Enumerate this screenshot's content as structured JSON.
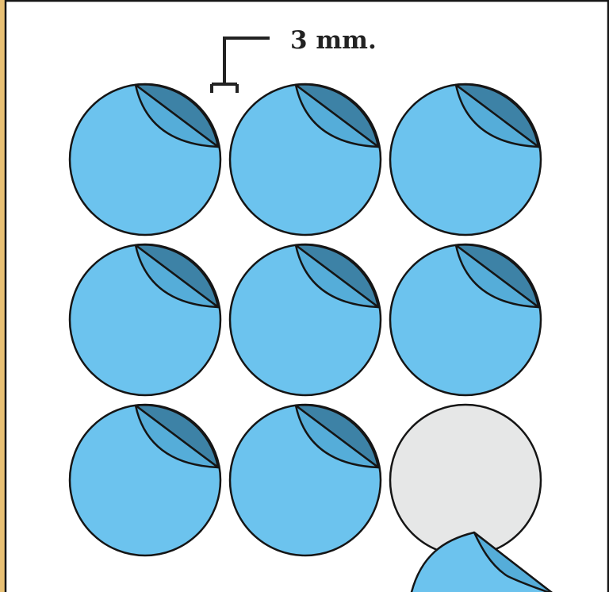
{
  "dimension": {
    "label": "3 mm."
  },
  "stickers": [
    {
      "state": "attached",
      "peel": "corner-lifted"
    },
    {
      "state": "attached",
      "peel": "corner-lifted"
    },
    {
      "state": "attached",
      "peel": "corner-lifted"
    },
    {
      "state": "attached",
      "peel": "corner-lifted"
    },
    {
      "state": "attached",
      "peel": "corner-lifted"
    },
    {
      "state": "attached",
      "peel": "corner-lifted"
    },
    {
      "state": "attached",
      "peel": "corner-lifted"
    },
    {
      "state": "attached",
      "peel": "corner-lifted"
    },
    {
      "state": "removed",
      "peel": "peeling-off"
    }
  ],
  "colors": {
    "sticker": "#6cc3ee",
    "fold_light": "#55add9",
    "fold_dark": "#3d82a6",
    "backing": "#e6e7e7",
    "outline": "#151515",
    "sheet_frame": "#e8c074",
    "sheet": "#ffffff"
  }
}
